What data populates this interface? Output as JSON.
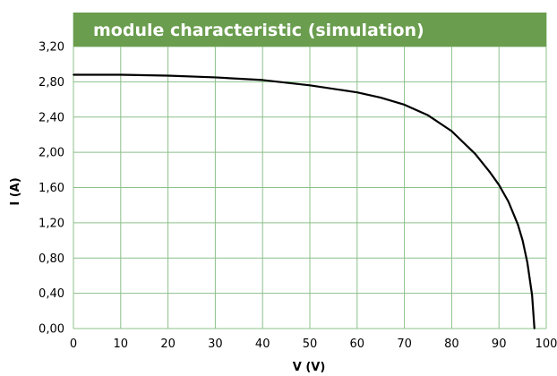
{
  "chart_data": {
    "type": "line",
    "title": "module characteristic (simulation)",
    "xlabel": "V (V)",
    "ylabel": "I (A)",
    "xlim": [
      0,
      100
    ],
    "ylim": [
      0,
      3.2
    ],
    "x_ticks": [
      "0",
      "10",
      "20",
      "30",
      "40",
      "50",
      "60",
      "70",
      "80",
      "90",
      "100"
    ],
    "y_ticks": [
      "0,00",
      "0,40",
      "0,80",
      "1,20",
      "1,60",
      "2,00",
      "2,40",
      "2,80",
      "3,20"
    ],
    "grid": true,
    "series": [
      {
        "x": [
          0,
          10,
          20,
          30,
          40,
          50,
          60,
          65,
          70,
          75,
          80,
          85,
          88,
          90,
          92,
          94,
          95,
          96,
          97,
          97.5
        ],
        "y": [
          2.88,
          2.88,
          2.87,
          2.85,
          2.82,
          2.76,
          2.68,
          2.62,
          2.54,
          2.42,
          2.24,
          1.98,
          1.78,
          1.63,
          1.44,
          1.18,
          1.0,
          0.75,
          0.38,
          0.0
        ]
      }
    ],
    "colors": {
      "title_bar": "#6a9d4e",
      "grid": "#8cc08a",
      "line": "#000000"
    }
  }
}
